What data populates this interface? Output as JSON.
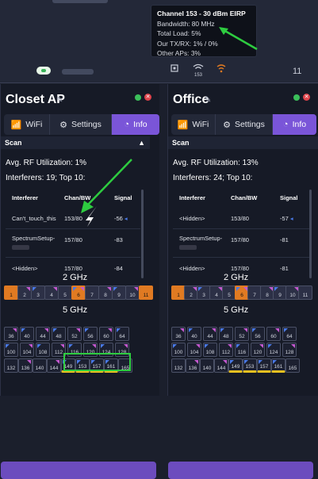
{
  "tooltip": {
    "title": "Channel 153 - 30 dBm EIRP",
    "bandwidth": "Bandwidth: 80 MHz",
    "total_load": "Total Load: 5%",
    "our_txrx": "Our TX/RX: 1% / 0%",
    "other_aps": "Other APs: 3%"
  },
  "topbar": {
    "radio_label": "153",
    "count": "11"
  },
  "colors": {
    "accent": "#7a55d8",
    "ok": "#3bbf5a",
    "error": "#e0434b",
    "busy": "#e07a22",
    "highlight": "#2ecc40"
  },
  "panels": [
    {
      "title": "Closet AP",
      "tabs": [
        "WiFi",
        "Settings",
        "Info"
      ],
      "scan_label": "Scan",
      "avg_util": "Avg. RF Utilization: 1%",
      "interferers": "Interferers: 19; Top 10:",
      "headers": [
        "Interferer",
        "Chan/BW",
        "Signal"
      ],
      "rows": [
        {
          "name": "Can't_touch_this",
          "chan": "153/80",
          "signal": "-56"
        },
        {
          "name": "SpectrumSetup-",
          "chan": "157/80",
          "signal": "-83"
        },
        {
          "name": "<Hidden>",
          "chan": "157/80",
          "signal": "-84"
        }
      ],
      "band_24": "2 GHz",
      "band_5": "5 GHz",
      "ch24": [
        "1",
        "2",
        "3",
        "4",
        "5",
        "6",
        "7",
        "8",
        "9",
        "10",
        "11"
      ],
      "ch5_row1": [
        "36",
        "40",
        "44",
        "48",
        "52",
        "56",
        "60",
        "64"
      ],
      "ch5_row2": [
        "100",
        "104",
        "108",
        "112",
        "116",
        "120",
        "124",
        "128"
      ],
      "ch5_row3": [
        "132",
        "136",
        "140",
        "144",
        "149",
        "153",
        "157",
        "161",
        "165"
      ]
    },
    {
      "title": "Office",
      "tabs": [
        "WiFi",
        "Settings",
        "Info"
      ],
      "scan_label": "Scan",
      "avg_util": "Avg. RF Utilization: 13%",
      "interferers": "Interferers: 24; Top 10:",
      "headers": [
        "Interferer",
        "Chan/BW",
        "Signal"
      ],
      "rows": [
        {
          "name": "<Hidden>",
          "chan": "153/80",
          "signal": "-57"
        },
        {
          "name": "SpectrumSetup-",
          "chan": "157/80",
          "signal": "-81"
        },
        {
          "name": "<Hidden>",
          "chan": "157/80",
          "signal": "-81"
        }
      ],
      "band_24": "2 GHz",
      "band_5": "5 GHz",
      "ch24": [
        "1",
        "2",
        "3",
        "4",
        "5",
        "6",
        "7",
        "8",
        "9",
        "10",
        "11"
      ],
      "ch5_row1": [
        "36",
        "40",
        "44",
        "48",
        "52",
        "56",
        "60",
        "64"
      ],
      "ch5_row2": [
        "100",
        "104",
        "108",
        "112",
        "116",
        "120",
        "124",
        "128"
      ],
      "ch5_row3": [
        "132",
        "136",
        "140",
        "144",
        "149",
        "153",
        "157",
        "161",
        "165"
      ]
    }
  ]
}
